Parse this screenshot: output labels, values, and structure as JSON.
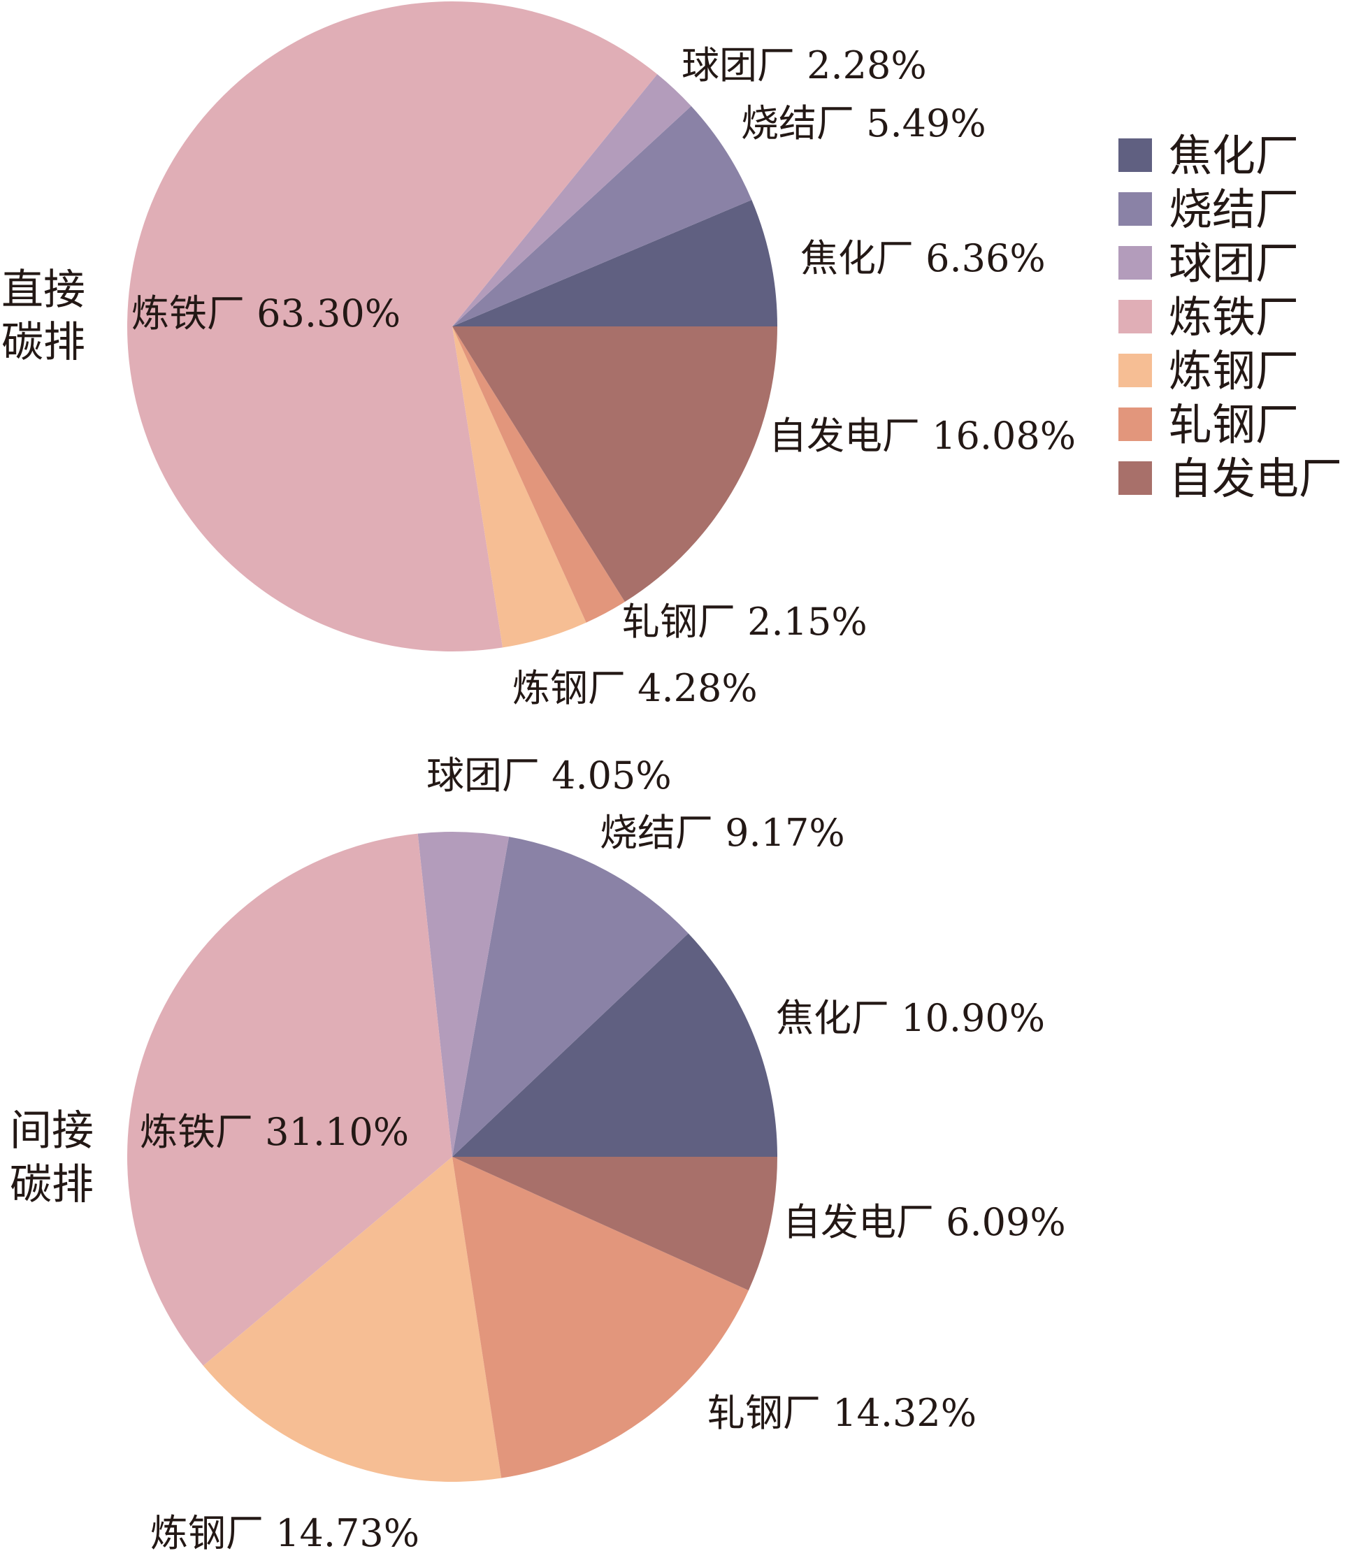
{
  "chart_data": [
    {
      "type": "pie",
      "title": "",
      "side_label": [
        "直接",
        "碳排"
      ],
      "slices": [
        {
          "name": "焦化厂",
          "value": 6.36,
          "label": "焦化厂 6.36%"
        },
        {
          "name": "烧结厂",
          "value": 5.49,
          "label": "烧结厂 5.49%"
        },
        {
          "name": "球团厂",
          "value": 2.28,
          "label": "球团厂 2.28%"
        },
        {
          "name": "炼铁厂",
          "value": 63.3,
          "label": "炼铁厂 63.30%"
        },
        {
          "name": "炼钢厂",
          "value": 4.28,
          "label": "炼钢厂 4.28%"
        },
        {
          "name": "轧钢厂",
          "value": 2.15,
          "label": "轧钢厂 2.15%"
        },
        {
          "name": "自发电厂",
          "value": 16.08,
          "label": "自发电厂 16.08%"
        }
      ]
    },
    {
      "type": "pie",
      "title": "",
      "side_label": [
        "间接",
        "碳排"
      ],
      "slices": [
        {
          "name": "焦化厂",
          "value": 10.9,
          "label": "焦化厂 10.90%"
        },
        {
          "name": "烧结厂",
          "value": 9.17,
          "label": "烧结厂 9.17%"
        },
        {
          "name": "球团厂",
          "value": 4.05,
          "label": "球团厂 4.05%"
        },
        {
          "name": "炼铁厂",
          "value": 31.1,
          "label": "炼铁厂 31.10%"
        },
        {
          "name": "炼钢厂",
          "value": 14.73,
          "label": "炼钢厂 14.73%"
        },
        {
          "name": "轧钢厂",
          "value": 14.32,
          "label": "轧钢厂 14.32%"
        },
        {
          "name": "自发电厂",
          "value": 6.09,
          "label": "自发电厂 6.09%"
        }
      ]
    }
  ],
  "legend": {
    "placement": "right",
    "items": [
      {
        "label": "焦化厂",
        "color": "#606081"
      },
      {
        "label": "烧结厂",
        "color": "#8a82a6"
      },
      {
        "label": "球团厂",
        "color": "#b39cbb"
      },
      {
        "label": "炼铁厂",
        "color": "#e0aeb6"
      },
      {
        "label": "炼钢厂",
        "color": "#f6be94"
      },
      {
        "label": "轧钢厂",
        "color": "#e2967c"
      },
      {
        "label": "自发电厂",
        "color": "#a8706a"
      }
    ]
  }
}
